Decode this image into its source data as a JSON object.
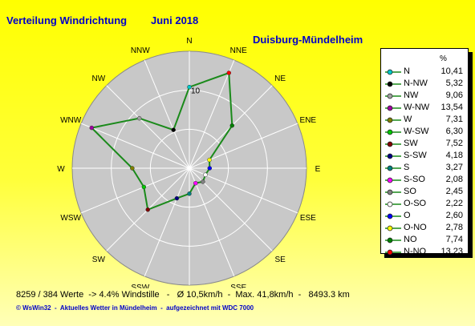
{
  "header": {
    "title": "Verteilung Windrichtung",
    "date": "Juni 2018",
    "station": "Duisburg-Mündelheim"
  },
  "legend_unit": "%",
  "ring_label": "10",
  "chart_data": {
    "type": "radar",
    "title": "Verteilung Windrichtung   Juni 2018",
    "directions": [
      "N",
      "NNE",
      "NE",
      "ENE",
      "E",
      "ESE",
      "SE",
      "SSE",
      "S",
      "SSW",
      "SW",
      "WSW",
      "W",
      "WNW",
      "NW",
      "NNW"
    ],
    "values": [
      10.41,
      13.23,
      7.74,
      2.78,
      2.6,
      2.22,
      2.45,
      2.08,
      3.27,
      4.18,
      7.52,
      6.3,
      7.31,
      13.54,
      9.06,
      5.32
    ],
    "rlim": [
      0,
      15
    ],
    "ring_step": 5,
    "line_color": "#1a8a1a",
    "disc_color": "#c8c8c8",
    "grid": true,
    "legend_position": "right",
    "legend": [
      {
        "label": "N",
        "value": "10,41",
        "color": "#00c8c8"
      },
      {
        "label": "N-NW",
        "value": "5,32",
        "color": "#000000"
      },
      {
        "label": "NW",
        "value": "9,06",
        "color": "#a0a0a0"
      },
      {
        "label": "W-NW",
        "value": "13,54",
        "color": "#a000a0"
      },
      {
        "label": "W",
        "value": "7,31",
        "color": "#808000"
      },
      {
        "label": "W-SW",
        "value": "6,30",
        "color": "#00c800"
      },
      {
        "label": "SW",
        "value": "7,52",
        "color": "#800000"
      },
      {
        "label": "S-SW",
        "value": "4,18",
        "color": "#000080"
      },
      {
        "label": "S",
        "value": "3,27",
        "color": "#008080"
      },
      {
        "label": "S-SO",
        "value": "2,08",
        "color": "#ff00ff"
      },
      {
        "label": "SO",
        "value": "2,45",
        "color": "#808080"
      },
      {
        "label": "O-SO",
        "value": "2,22",
        "color": "#ffffff"
      },
      {
        "label": "O",
        "value": "2,60",
        "color": "#0000ff"
      },
      {
        "label": "O-NO",
        "value": "2,78",
        "color": "#ffff00"
      },
      {
        "label": "NO",
        "value": "7,74",
        "color": "#008000"
      },
      {
        "label": "N-NO",
        "value": "13,23",
        "color": "#ff0000"
      }
    ]
  },
  "footer": {
    "stats": "8259 / 384 Werte  -> 4.4% Windstille   -   Ø 10,5km/h  -  Max. 41,8km/h  -   8493.3 km",
    "credit": "© WsWin32  -  Aktuelles Wetter in Mündelheim  -  aufgezeichnet mit WDC 7000"
  }
}
